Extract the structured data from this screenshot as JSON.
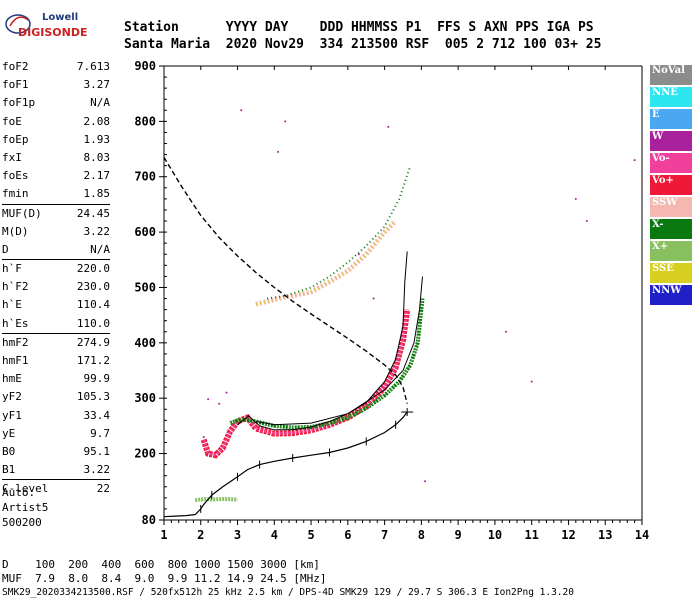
{
  "logo": {
    "line1": "Lowell",
    "line2": "DIGISONDE"
  },
  "header": {
    "line1": "Station      YYYY DAY    DDD HHMMSS P1  FFS S AXN PPS IGA PS",
    "line2": "Santa Maria  2020 Nov29  334 213500 RSF  005 2 712 100 03+ 25"
  },
  "params_group1": [
    {
      "name": "foF2",
      "value": "7.613"
    },
    {
      "name": "foF1",
      "value": "3.27"
    },
    {
      "name": "foF1p",
      "value": "N/A"
    },
    {
      "name": "foE",
      "value": "2.08"
    },
    {
      "name": "foEp",
      "value": "1.93"
    },
    {
      "name": "fxI",
      "value": "8.03"
    },
    {
      "name": "foEs",
      "value": "2.17"
    },
    {
      "name": "fmin",
      "value": "1.85"
    }
  ],
  "params_group2": [
    {
      "name": "MUF(D)",
      "value": "24.45"
    },
    {
      "name": "M(D)",
      "value": "3.22"
    },
    {
      "name": "D",
      "value": "N/A"
    }
  ],
  "params_group3": [
    {
      "name": "h`F",
      "value": "220.0"
    },
    {
      "name": "h`F2",
      "value": "230.0"
    },
    {
      "name": "h`E",
      "value": "110.4"
    },
    {
      "name": "h`Es",
      "value": "110.0"
    }
  ],
  "params_group4": [
    {
      "name": "hmF2",
      "value": "274.9"
    },
    {
      "name": "hmF1",
      "value": "171.2"
    },
    {
      "name": "hmE",
      "value": "99.9"
    },
    {
      "name": "yF2",
      "value": "105.3"
    },
    {
      "name": "yF1",
      "value": "33.4"
    },
    {
      "name": "yE",
      "value": "9.7"
    },
    {
      "name": "B0",
      "value": "95.1"
    },
    {
      "name": "B1",
      "value": "3.22"
    }
  ],
  "params_group5": [
    {
      "name": "C-level",
      "value": "22"
    }
  ],
  "auto_lines": [
    "Auto:",
    "Artist5",
    "500200"
  ],
  "legend": [
    {
      "label": "NoVal",
      "color": "#8c8c8c"
    },
    {
      "label": "NNE",
      "color": "#2ee6f0"
    },
    {
      "label": "E",
      "color": "#4aa8f0"
    },
    {
      "label": "W",
      "color": "#a8209c"
    },
    {
      "label": "Vo-",
      "color": "#f0409c"
    },
    {
      "label": "Vo+",
      "color": "#f01838"
    },
    {
      "label": "SSW",
      "color": "#f4b8b0"
    },
    {
      "label": "X-",
      "color": "#0a7a10"
    },
    {
      "label": "X+",
      "color": "#88c060"
    },
    {
      "label": "SSE",
      "color": "#d8d020"
    },
    {
      "label": "NNW",
      "color": "#2020c8"
    }
  ],
  "bottom_table": {
    "line1": "D    100  200  400  600  800 1000 1500 3000 [km]",
    "line2": "MUF  7.9  8.0  8.4  9.0  9.9 11.2 14.9 24.5 [MHz]"
  },
  "footer": "SMK29_2020334213500.RSF / 520fx512h 25 kHz 2.5 km / DPS-4D SMK29 129 / 29.7 S 306.3 E Ion2Png 1.3.20",
  "chart_data": {
    "type": "scatter",
    "xlim": [
      1,
      14
    ],
    "ylim": [
      80,
      900
    ],
    "x_ticks": [
      1,
      2,
      3,
      4,
      5,
      6,
      7,
      8,
      9,
      10,
      11,
      12,
      13,
      14
    ],
    "y_ticks": [
      80,
      200,
      300,
      400,
      500,
      600,
      700,
      800,
      900
    ],
    "profile": [
      [
        1.0,
        86
      ],
      [
        1.3,
        87
      ],
      [
        1.6,
        88
      ],
      [
        1.85,
        90
      ],
      [
        2.0,
        100
      ],
      [
        2.08,
        108
      ],
      [
        2.3,
        125
      ],
      [
        2.6,
        140
      ],
      [
        3.0,
        158
      ],
      [
        3.27,
        171
      ],
      [
        3.6,
        180
      ],
      [
        4.0,
        186
      ],
      [
        4.5,
        192
      ],
      [
        5.0,
        197
      ],
      [
        5.5,
        202
      ],
      [
        6.0,
        210
      ],
      [
        6.5,
        222
      ],
      [
        7.0,
        238
      ],
      [
        7.3,
        252
      ],
      [
        7.5,
        265
      ],
      [
        7.613,
        275
      ]
    ],
    "muf_curve": [
      [
        1.0,
        735
      ],
      [
        1.5,
        680
      ],
      [
        2.0,
        630
      ],
      [
        2.5,
        590
      ],
      [
        3.0,
        557
      ],
      [
        3.5,
        527
      ],
      [
        4.0,
        500
      ],
      [
        4.5,
        475
      ],
      [
        5.0,
        452
      ],
      [
        5.5,
        430
      ],
      [
        6.0,
        408
      ],
      [
        6.5,
        385
      ],
      [
        7.0,
        360
      ],
      [
        7.3,
        342
      ],
      [
        7.5,
        320
      ],
      [
        7.613,
        290
      ]
    ],
    "o_trace": [
      [
        2.08,
        225
      ],
      [
        2.2,
        200
      ],
      [
        2.4,
        197
      ],
      [
        2.6,
        210
      ],
      [
        2.8,
        240
      ],
      [
        3.0,
        258
      ],
      [
        3.27,
        265
      ],
      [
        3.5,
        245
      ],
      [
        4.0,
        236
      ],
      [
        4.5,
        237
      ],
      [
        5.0,
        242
      ],
      [
        5.5,
        252
      ],
      [
        6.0,
        265
      ],
      [
        6.5,
        285
      ],
      [
        7.0,
        320
      ],
      [
        7.3,
        355
      ],
      [
        7.5,
        405
      ],
      [
        7.613,
        460
      ]
    ],
    "x_trace": [
      [
        2.8,
        255
      ],
      [
        3.1,
        262
      ],
      [
        3.5,
        258
      ],
      [
        4.0,
        250
      ],
      [
        4.5,
        247
      ],
      [
        5.0,
        248
      ],
      [
        5.5,
        255
      ],
      [
        6.0,
        265
      ],
      [
        6.5,
        282
      ],
      [
        7.0,
        305
      ],
      [
        7.4,
        330
      ],
      [
        7.7,
        360
      ],
      [
        7.9,
        400
      ],
      [
        8.03,
        480
      ]
    ],
    "fitted_o": [
      [
        3.0,
        252
      ],
      [
        3.3,
        268
      ],
      [
        3.6,
        250
      ],
      [
        4.0,
        243
      ],
      [
        4.5,
        243
      ],
      [
        5.0,
        248
      ],
      [
        5.5,
        258
      ],
      [
        6.0,
        272
      ],
      [
        6.5,
        292
      ],
      [
        7.0,
        330
      ],
      [
        7.3,
        370
      ],
      [
        7.5,
        430
      ],
      [
        7.55,
        510
      ],
      [
        7.613,
        565
      ]
    ],
    "fitted_x": [
      [
        3.5,
        258
      ],
      [
        4.0,
        252
      ],
      [
        5.0,
        255
      ],
      [
        6.0,
        272
      ],
      [
        7.0,
        315
      ],
      [
        7.5,
        350
      ],
      [
        7.8,
        400
      ],
      [
        7.95,
        460
      ],
      [
        8.03,
        520
      ]
    ],
    "es_trace": [
      [
        1.85,
        116
      ],
      [
        2.0,
        117
      ],
      [
        2.17,
        118
      ],
      [
        2.3,
        117
      ],
      [
        2.6,
        118
      ],
      [
        3.0,
        117
      ]
    ],
    "o_second": [
      [
        3.5,
        470
      ],
      [
        4.0,
        478
      ],
      [
        4.5,
        485
      ],
      [
        5.0,
        492
      ],
      [
        5.5,
        510
      ],
      [
        6.0,
        530
      ],
      [
        6.5,
        560
      ],
      [
        7.0,
        600
      ],
      [
        7.3,
        620
      ]
    ],
    "x_second": [
      [
        3.8,
        480
      ],
      [
        4.3,
        485
      ],
      [
        5.0,
        500
      ],
      [
        5.5,
        520
      ],
      [
        6.0,
        545
      ],
      [
        6.5,
        575
      ],
      [
        7.0,
        610
      ],
      [
        7.4,
        660
      ],
      [
        7.7,
        720
      ]
    ]
  }
}
